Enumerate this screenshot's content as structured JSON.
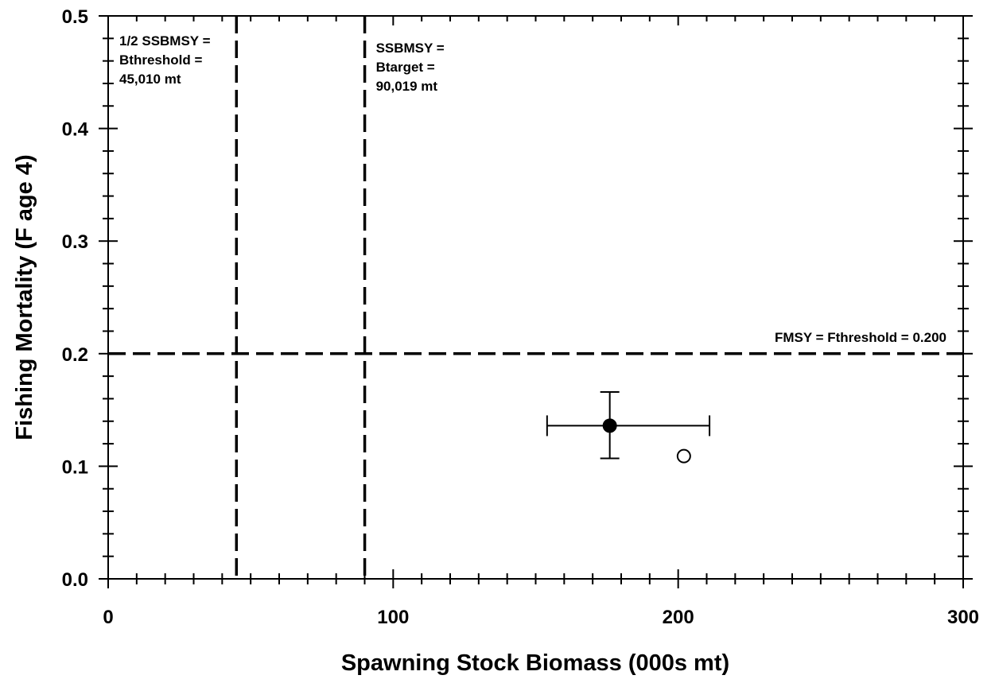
{
  "chart_data": {
    "type": "scatter",
    "xlabel": "Spawning Stock Biomass (000s mt)",
    "ylabel": "Fishing Mortality (F age 4)",
    "xlim": [
      0,
      300
    ],
    "ylim": [
      0,
      0.5
    ],
    "x_ticks": [
      "0",
      "100",
      "200",
      "300"
    ],
    "y_ticks": [
      "0.0",
      "0.1",
      "0.2",
      "0.3",
      "0.4",
      "0.5"
    ],
    "grid": false,
    "points": [
      {
        "x": 176,
        "y": 0.136,
        "fill": "filled",
        "x_err": [
          154,
          211
        ],
        "y_err": [
          0.107,
          0.166
        ]
      },
      {
        "x": 202,
        "y": 0.109,
        "fill": "open"
      }
    ],
    "reference_lines": [
      {
        "orientation": "vertical",
        "value": 45.01,
        "label": [
          "1/2 SSBMSY =",
          "Bthreshold =",
          "45,010 mt"
        ]
      },
      {
        "orientation": "vertical",
        "value": 90.019,
        "label": [
          "SSBMSY =",
          "Btarget =",
          "90,019 mt"
        ]
      },
      {
        "orientation": "horizontal",
        "value": 0.2,
        "label": [
          "FMSY = Fthreshold = 0.200"
        ]
      }
    ],
    "colors": {
      "marks": "#000000",
      "background": "#ffffff"
    }
  }
}
